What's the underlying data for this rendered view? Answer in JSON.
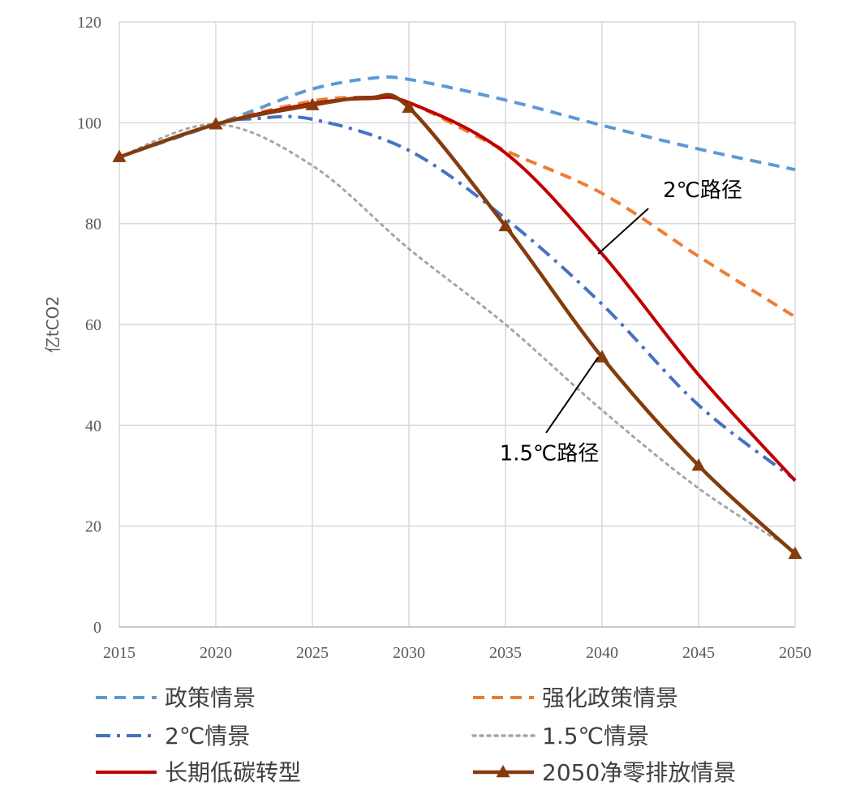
{
  "chart_data": {
    "type": "line",
    "title": "",
    "xlabel": "",
    "ylabel": "亿tCO2",
    "x": [
      2015,
      2020,
      2025,
      2030,
      2035,
      2040,
      2045,
      2050
    ],
    "x_ticks": [
      "2015",
      "2020",
      "2025",
      "2030",
      "2035",
      "2040",
      "2045",
      "2050"
    ],
    "xlim": [
      2015,
      2050
    ],
    "ylim": [
      0,
      120
    ],
    "y_ticks": [
      "0",
      "20",
      "40",
      "60",
      "80",
      "100",
      "120"
    ],
    "grid": true,
    "legend_position": "bottom",
    "series": [
      {
        "name": "政策情景",
        "color": "#5b9bd5",
        "line_style": "dashed",
        "points": [
          [
            2015,
            93.2
          ],
          [
            2020,
            99.7
          ],
          [
            2022,
            102.5
          ],
          [
            2025,
            106.7
          ],
          [
            2028,
            108.8
          ],
          [
            2030,
            108.6
          ],
          [
            2035,
            104.5
          ],
          [
            2040,
            99.5
          ],
          [
            2045,
            94.8
          ],
          [
            2050,
            90.7
          ]
        ]
      },
      {
        "name": "强化政策情景",
        "color": "#ed7d31",
        "line_style": "dashed",
        "points": [
          [
            2015,
            93.2
          ],
          [
            2020,
            99.7
          ],
          [
            2025,
            104.3
          ],
          [
            2028,
            105.0
          ],
          [
            2030,
            104.0
          ],
          [
            2035,
            94.5
          ],
          [
            2040,
            86.0
          ],
          [
            2045,
            73.5
          ],
          [
            2050,
            61.5
          ]
        ]
      },
      {
        "name": "2℃情景",
        "color": "#4472c4",
        "line_style": "dashdot",
        "points": [
          [
            2015,
            93.2
          ],
          [
            2020,
            99.7
          ],
          [
            2022,
            100.8
          ],
          [
            2025,
            100.7
          ],
          [
            2030,
            94.5
          ],
          [
            2035,
            81.0
          ],
          [
            2040,
            64.0
          ],
          [
            2045,
            44.0
          ],
          [
            2050,
            29.2
          ]
        ]
      },
      {
        "name": "1.5℃情景",
        "color": "#a5a5a5",
        "line_style": "dotted",
        "points": [
          [
            2015,
            93.2
          ],
          [
            2020,
            99.7
          ],
          [
            2025,
            91.5
          ],
          [
            2030,
            75.0
          ],
          [
            2035,
            60.0
          ],
          [
            2040,
            43.0
          ],
          [
            2045,
            27.5
          ],
          [
            2050,
            15.0
          ]
        ]
      },
      {
        "name": "长期低碳转型",
        "color": "#c00000",
        "line_style": "solid",
        "points": [
          [
            2015,
            93.2
          ],
          [
            2020,
            99.7
          ],
          [
            2025,
            103.8
          ],
          [
            2028,
            104.8
          ],
          [
            2030,
            104.0
          ],
          [
            2035,
            94.0
          ],
          [
            2040,
            74.0
          ],
          [
            2045,
            50.0
          ],
          [
            2050,
            29.0
          ]
        ]
      },
      {
        "name": "2050净零排放情景",
        "color": "#843c0c",
        "line_style": "solid",
        "marker": "triangle",
        "marker_x": [
          2015,
          2020,
          2025,
          2030,
          2035,
          2040,
          2045,
          2050
        ],
        "points": [
          [
            2015,
            93.2
          ],
          [
            2020,
            99.7
          ],
          [
            2025,
            103.5
          ],
          [
            2028,
            105.0
          ],
          [
            2030,
            103.0
          ],
          [
            2035,
            79.5
          ],
          [
            2040,
            53.5
          ],
          [
            2045,
            32.0
          ],
          [
            2050,
            14.5
          ]
        ]
      }
    ],
    "annotations": [
      {
        "text": "2℃路径",
        "target": [
          2039.8,
          74.0
        ],
        "text_anchor_point": [
          2042.4,
          83.0
        ]
      },
      {
        "text": "1.5℃路径",
        "target": [
          2039.8,
          53.5
        ],
        "text_anchor_point": [
          2037.1,
          38.5
        ]
      }
    ]
  }
}
